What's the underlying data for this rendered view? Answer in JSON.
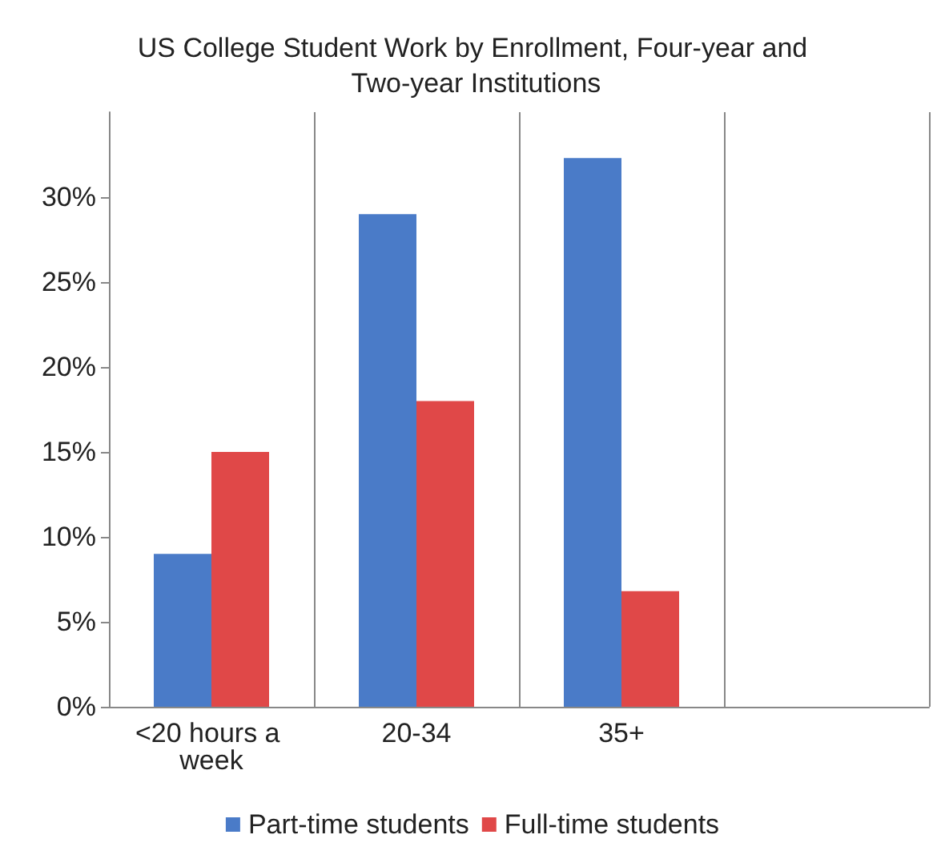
{
  "chart_data": {
    "type": "bar",
    "title": "US College Student Work by Enrollment, Four-year and Two-year Institutions",
    "categories": [
      "<20 hours a week",
      "20-34",
      "35+",
      null
    ],
    "series": [
      {
        "name": "Part-time students",
        "color": "#4a7bc8",
        "values": [
          9,
          29,
          32.3,
          null
        ]
      },
      {
        "name": "Full-time students",
        "color": "#e04848",
        "values": [
          15,
          18,
          6.8,
          null
        ]
      }
    ],
    "ylim": [
      0,
      35
    ],
    "yticks": [
      {
        "value": 0,
        "label": "0%"
      },
      {
        "value": 5,
        "label": "5%"
      },
      {
        "value": 10,
        "label": "10%"
      },
      {
        "value": 15,
        "label": "15%"
      },
      {
        "value": 20,
        "label": "20%"
      },
      {
        "value": 25,
        "label": "25%"
      },
      {
        "value": 30,
        "label": "30%"
      }
    ],
    "grid": "x",
    "legend": "bottom"
  }
}
